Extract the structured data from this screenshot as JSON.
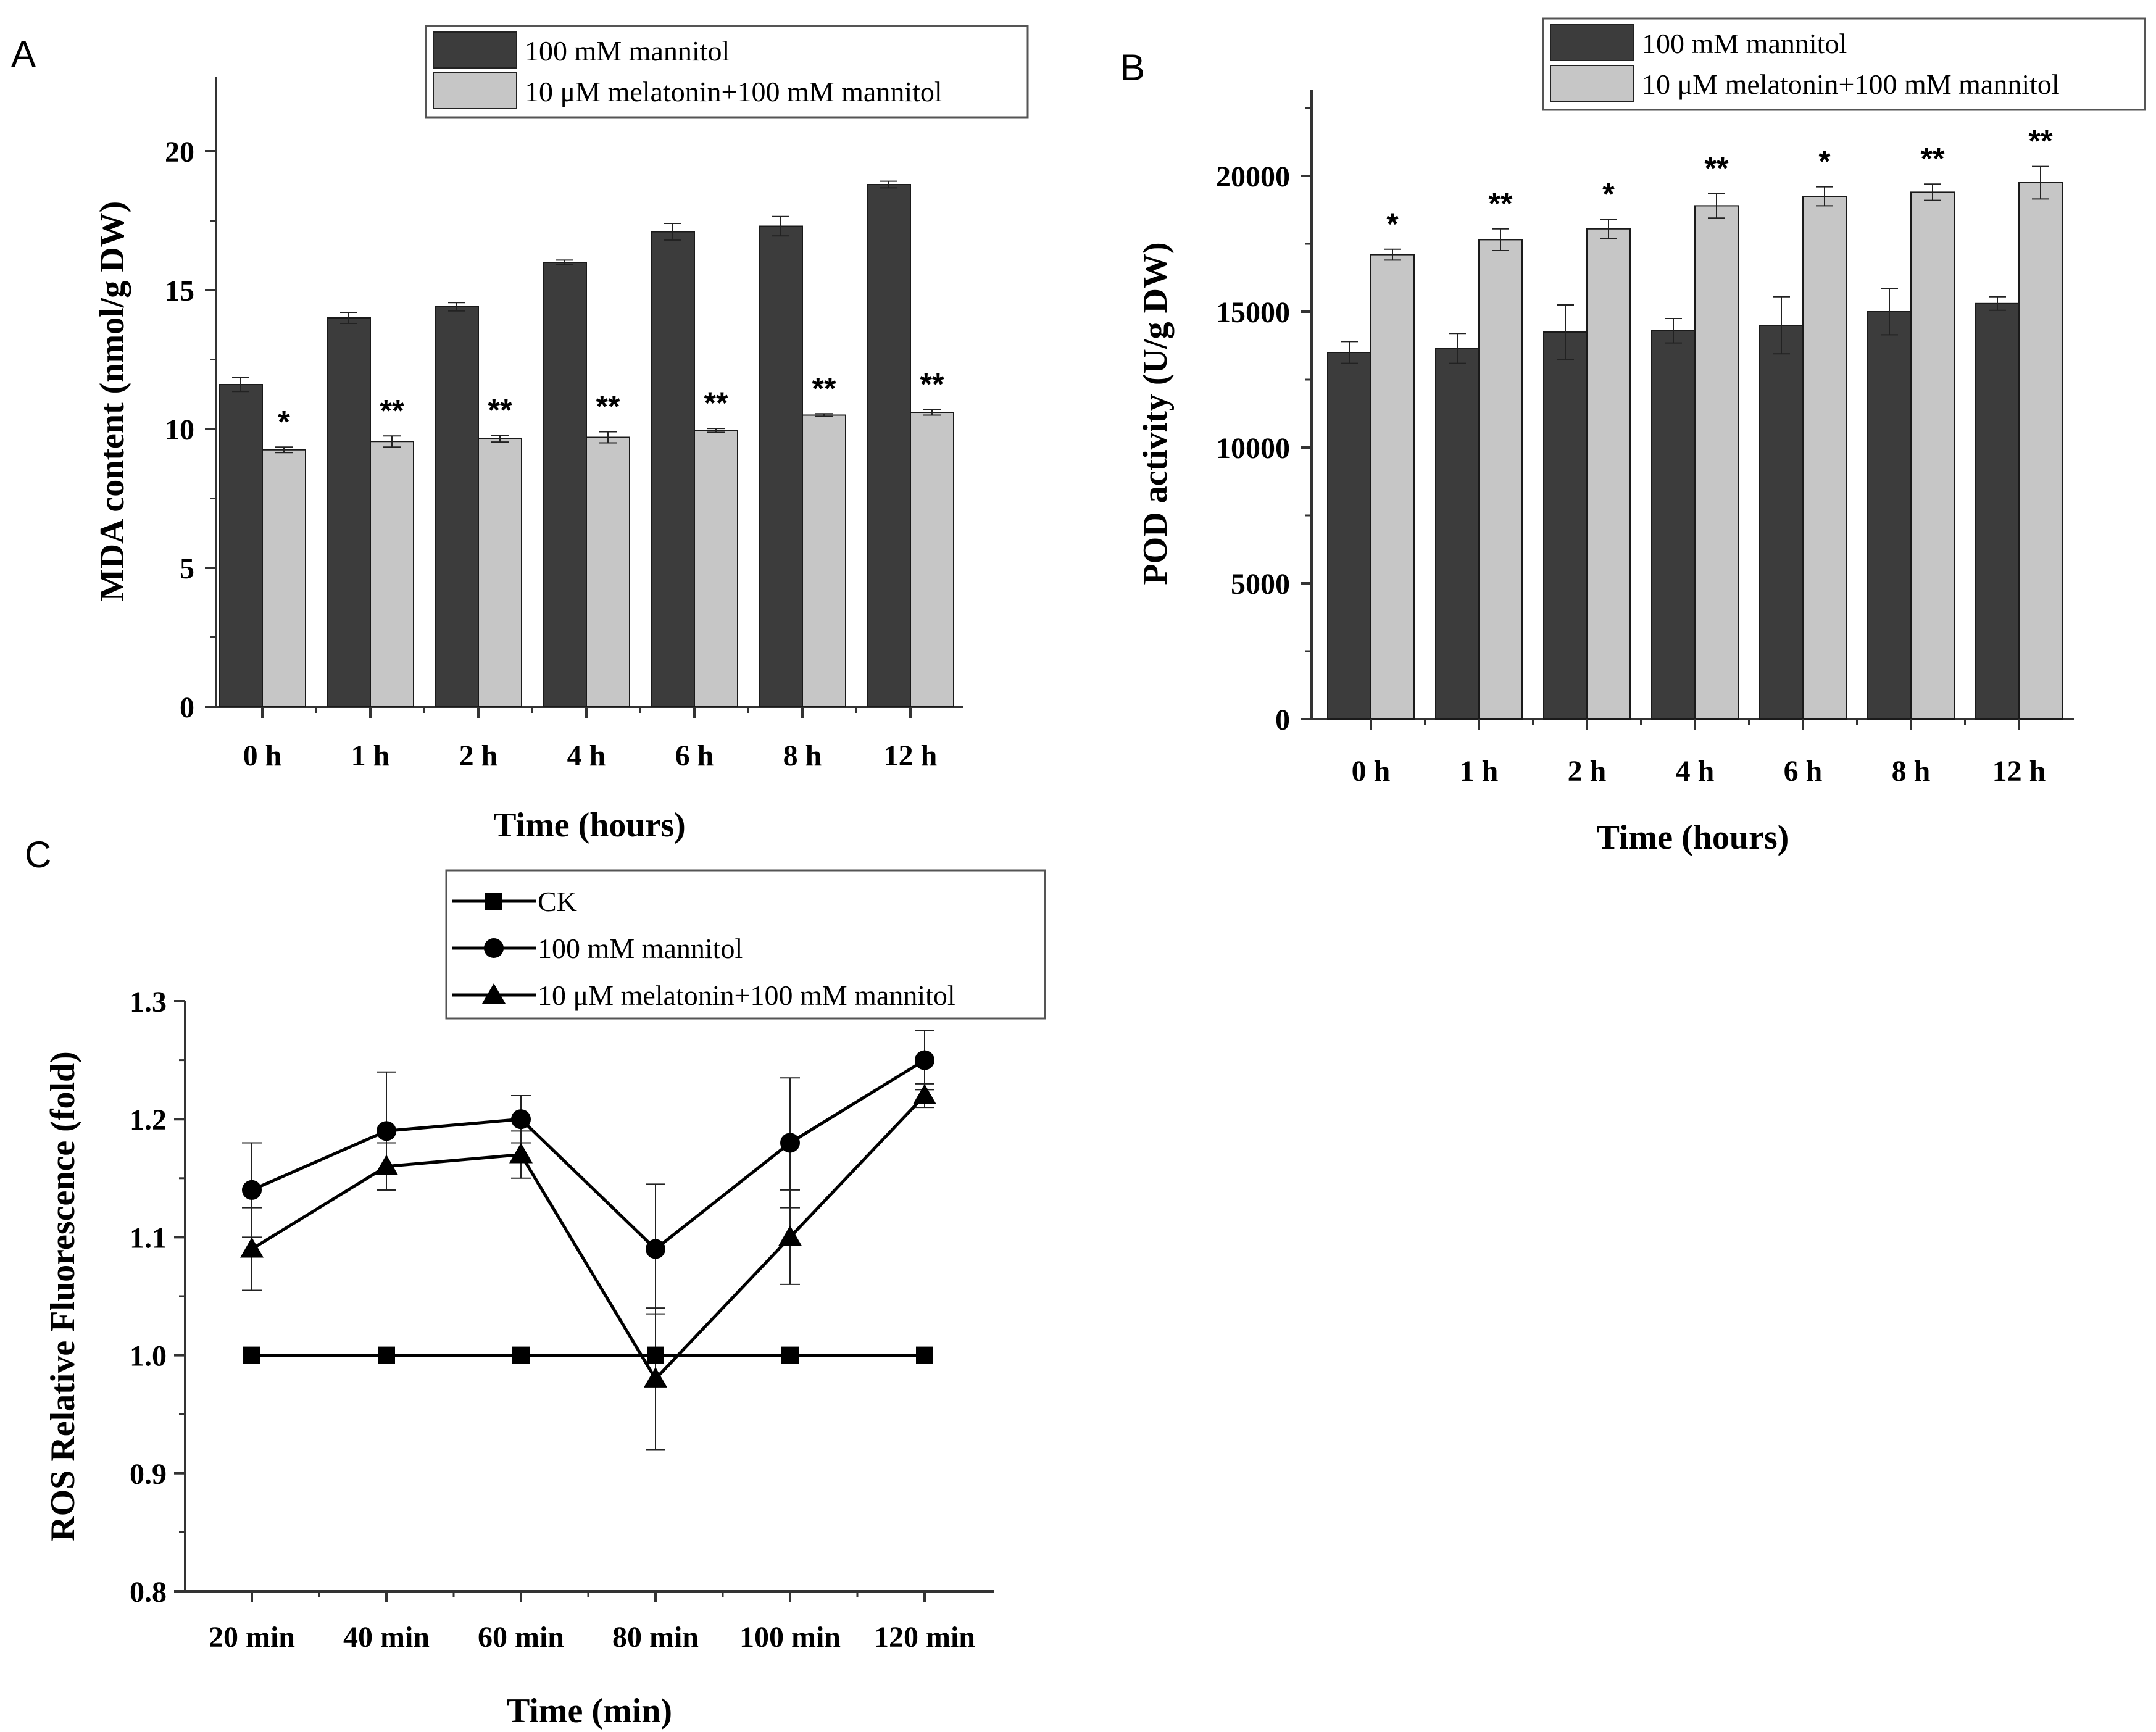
{
  "chart_data": [
    {
      "panel": "A",
      "type": "bar",
      "title": "",
      "xlabel": "Time (hours)",
      "ylabel": "MDA content (nmol/g DW)",
      "ylim": [
        0,
        22
      ],
      "yticks": [
        0,
        5,
        10,
        15,
        20
      ],
      "categories": [
        "0 h",
        "1 h",
        "2 h",
        "4 h",
        "6 h",
        "8 h",
        "12 h"
      ],
      "series": [
        {
          "name": "100 mM mannitol",
          "color": "#3c3c3c",
          "values": [
            11.6,
            14.0,
            14.4,
            16.0,
            17.1,
            17.3,
            18.8
          ],
          "errors": [
            0.25,
            0.2,
            0.15,
            0.08,
            0.3,
            0.35,
            0.12
          ]
        },
        {
          "name": "10 μM melatonin+100 mM mannitol",
          "color": "#c6c6c6",
          "values": [
            9.25,
            9.55,
            9.65,
            9.7,
            9.95,
            10.5,
            10.6
          ],
          "errors": [
            0.1,
            0.2,
            0.12,
            0.2,
            0.07,
            0.05,
            0.1
          ]
        }
      ],
      "significance": [
        "*",
        "**",
        "**",
        "**",
        "**",
        "**",
        "**"
      ],
      "legend_position": "top-right"
    },
    {
      "panel": "B",
      "type": "bar",
      "title": "",
      "xlabel": "Time (hours)",
      "ylabel": "POD activity (U/g DW)",
      "ylim": [
        0,
        22500
      ],
      "yticks": [
        0,
        5000,
        10000,
        15000,
        20000
      ],
      "categories": [
        "0 h",
        "1 h",
        "2 h",
        "4 h",
        "6 h",
        "8 h",
        "12 h"
      ],
      "series": [
        {
          "name": "100 mM mannitol",
          "color": "#3c3c3c",
          "values": [
            13500,
            13650,
            14250,
            14300,
            14500,
            15000,
            15300
          ],
          "errors": [
            400,
            550,
            1000,
            450,
            1050,
            850,
            250
          ]
        },
        {
          "name": "10 μM melatonin+100 mM mannitol",
          "color": "#c6c6c6",
          "values": [
            17100,
            17650,
            18050,
            18900,
            19250,
            19400,
            19750
          ],
          "errors": [
            200,
            400,
            350,
            450,
            350,
            300,
            600
          ]
        }
      ],
      "significance": [
        "*",
        "**",
        "*",
        "**",
        "*",
        "**",
        "**"
      ],
      "legend_position": "top-right"
    },
    {
      "panel": "C",
      "type": "line",
      "title": "",
      "xlabel": "Time (min)",
      "ylabel": "ROS Relative Fluorescence (fold)",
      "ylim": [
        0.8,
        1.3
      ],
      "yticks": [
        0.8,
        0.9,
        1.0,
        1.1,
        1.2,
        1.3
      ],
      "ytick_labels": [
        "0.8",
        "0.9",
        "1.0",
        "1.1",
        "1.2",
        "1.3"
      ],
      "categories": [
        "20 min",
        "40 min",
        "60 min",
        "80 min",
        "100 min",
        "120 min"
      ],
      "series": [
        {
          "name": "CK",
          "marker": "square",
          "values": [
            1.0,
            1.0,
            1.0,
            1.0,
            1.0,
            1.0
          ],
          "errors": [
            0,
            0,
            0,
            0,
            0,
            0
          ]
        },
        {
          "name": "100 mM mannitol",
          "marker": "circle",
          "values": [
            1.14,
            1.19,
            1.2,
            1.09,
            1.18,
            1.25
          ],
          "errors": [
            0.04,
            0.05,
            0.02,
            0.055,
            0.055,
            0.025
          ]
        },
        {
          "name": "10 μM melatonin+100 mM mannitol",
          "marker": "triangle",
          "values": [
            1.09,
            1.16,
            1.17,
            0.98,
            1.1,
            1.22
          ],
          "errors": [
            0.035,
            0.02,
            0.02,
            0.06,
            0.04,
            0.01
          ]
        }
      ],
      "legend_position": "top-right"
    }
  ]
}
